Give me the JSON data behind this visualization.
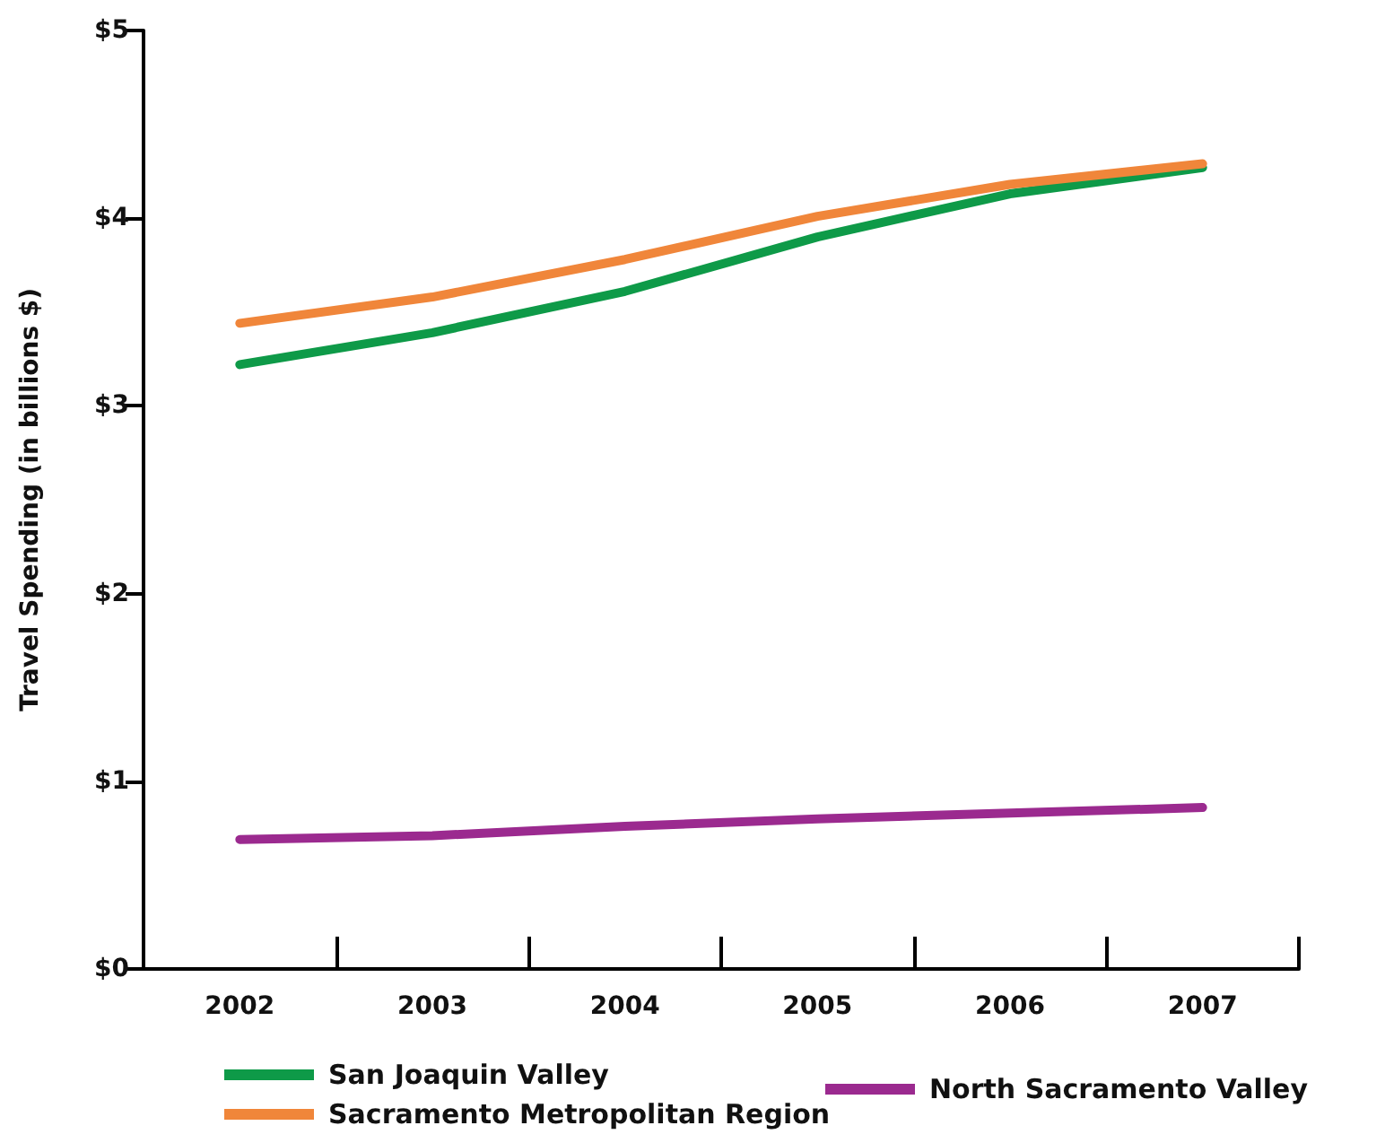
{
  "chart_data": {
    "type": "line",
    "ylabel": "Travel Spending (in billions $)",
    "categories": [
      "2002",
      "2003",
      "2004",
      "2005",
      "2006",
      "2007"
    ],
    "series": [
      {
        "name": "San Joaquin Valley",
        "color": "#0e9a48",
        "values": [
          3.22,
          3.39,
          3.61,
          3.9,
          4.13,
          4.27
        ]
      },
      {
        "name": "Sacramento Metropolitan Region",
        "color": "#f0863a",
        "values": [
          3.44,
          3.58,
          3.78,
          4.01,
          4.18,
          4.29
        ]
      },
      {
        "name": "North Sacramento Valley",
        "color": "#9b2a8f",
        "values": [
          0.69,
          0.71,
          0.76,
          0.8,
          0.83,
          0.86
        ]
      }
    ],
    "ylim": [
      0,
      5
    ],
    "yticks": [
      {
        "value": 0,
        "label": "$0"
      },
      {
        "value": 1,
        "label": "$1"
      },
      {
        "value": 2,
        "label": "$2"
      },
      {
        "value": 3,
        "label": "$3"
      },
      {
        "value": 4,
        "label": "$4"
      },
      {
        "value": 5,
        "label": "$5"
      }
    ],
    "grid": false,
    "legend": "bottom",
    "marker": "none",
    "line_style": "solid"
  }
}
